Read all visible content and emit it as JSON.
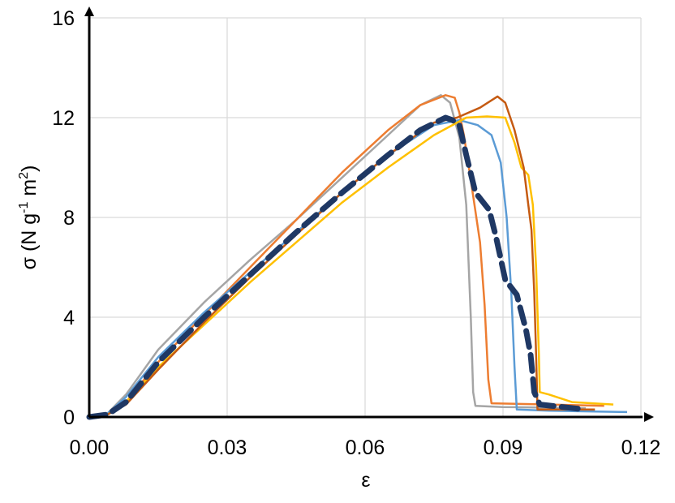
{
  "chart_data": {
    "type": "line",
    "title": "",
    "xlabel": "ε",
    "ylabel": {
      "prefix": "σ (N g",
      "sup1": "-1",
      "mid": " m",
      "sup2": "2",
      "suffix": ")"
    },
    "xlim": [
      0,
      0.12
    ],
    "ylim": [
      0,
      16
    ],
    "xticks": [
      0.0,
      0.03,
      0.06,
      0.09,
      0.12
    ],
    "xtick_labels": [
      "0.00",
      "0.03",
      "0.06",
      "0.09",
      "0.12"
    ],
    "yticks": [
      0,
      4,
      8,
      12,
      16
    ],
    "ytick_labels": [
      "0",
      "4",
      "8",
      "12",
      "16"
    ],
    "grid": true,
    "legend": "none",
    "series": [
      {
        "color": "#a5a5a5",
        "style": "solid",
        "points": [
          [
            0,
            0
          ],
          [
            0.004,
            0.15
          ],
          [
            0.008,
            0.9
          ],
          [
            0.015,
            2.7
          ],
          [
            0.025,
            4.6
          ],
          [
            0.035,
            6.3
          ],
          [
            0.045,
            7.9
          ],
          [
            0.055,
            9.6
          ],
          [
            0.065,
            11.3
          ],
          [
            0.072,
            12.5
          ],
          [
            0.0765,
            12.9
          ],
          [
            0.0785,
            12.6
          ],
          [
            0.0805,
            11.2
          ],
          [
            0.082,
            8.5
          ],
          [
            0.083,
            4.0
          ],
          [
            0.0835,
            1.0
          ],
          [
            0.084,
            0.45
          ],
          [
            0.09,
            0.4
          ],
          [
            0.108,
            0.35
          ]
        ]
      },
      {
        "color": "#ed7d31",
        "style": "solid",
        "points": [
          [
            0,
            0
          ],
          [
            0.004,
            0.1
          ],
          [
            0.008,
            0.6
          ],
          [
            0.015,
            2.2
          ],
          [
            0.025,
            4.1
          ],
          [
            0.035,
            6.0
          ],
          [
            0.045,
            7.9
          ],
          [
            0.055,
            9.8
          ],
          [
            0.065,
            11.5
          ],
          [
            0.072,
            12.5
          ],
          [
            0.0775,
            12.9
          ],
          [
            0.0795,
            12.8
          ],
          [
            0.0805,
            12.2
          ],
          [
            0.0815,
            11.3
          ],
          [
            0.083,
            9.5
          ],
          [
            0.085,
            7.0
          ],
          [
            0.086,
            4.5
          ],
          [
            0.0868,
            1.5
          ],
          [
            0.0875,
            0.55
          ],
          [
            0.1,
            0.5
          ],
          [
            0.112,
            0.45
          ]
        ]
      },
      {
        "color": "#5b9bd5",
        "style": "solid",
        "points": [
          [
            0,
            0
          ],
          [
            0.004,
            0.15
          ],
          [
            0.008,
            0.8
          ],
          [
            0.015,
            2.4
          ],
          [
            0.025,
            4.2
          ],
          [
            0.035,
            5.8
          ],
          [
            0.045,
            7.4
          ],
          [
            0.055,
            9.0
          ],
          [
            0.065,
            10.5
          ],
          [
            0.075,
            11.7
          ],
          [
            0.0805,
            11.9
          ],
          [
            0.0845,
            11.7
          ],
          [
            0.0875,
            11.3
          ],
          [
            0.0895,
            10.2
          ],
          [
            0.0908,
            8.0
          ],
          [
            0.0918,
            5.0
          ],
          [
            0.0925,
            2.0
          ],
          [
            0.093,
            0.3
          ],
          [
            0.1,
            0.25
          ],
          [
            0.117,
            0.2
          ]
        ]
      },
      {
        "color": "#ffc000",
        "style": "solid",
        "points": [
          [
            0,
            0
          ],
          [
            0.004,
            0.1
          ],
          [
            0.008,
            0.6
          ],
          [
            0.015,
            2.0
          ],
          [
            0.025,
            3.7
          ],
          [
            0.035,
            5.4
          ],
          [
            0.045,
            7.0
          ],
          [
            0.055,
            8.6
          ],
          [
            0.065,
            10.0
          ],
          [
            0.075,
            11.3
          ],
          [
            0.082,
            12.0
          ],
          [
            0.0865,
            12.05
          ],
          [
            0.0905,
            12.0
          ],
          [
            0.0925,
            11.0
          ],
          [
            0.094,
            10.0
          ],
          [
            0.0955,
            9.7
          ],
          [
            0.0965,
            8.5
          ],
          [
            0.0972,
            6.0
          ],
          [
            0.0978,
            2.5
          ],
          [
            0.098,
            1.0
          ],
          [
            0.1,
            0.9
          ],
          [
            0.105,
            0.6
          ],
          [
            0.114,
            0.5
          ]
        ]
      },
      {
        "color": "#c55a11",
        "style": "solid",
        "points": [
          [
            0,
            0
          ],
          [
            0.004,
            0.1
          ],
          [
            0.008,
            0.5
          ],
          [
            0.015,
            1.9
          ],
          [
            0.025,
            3.8
          ],
          [
            0.035,
            5.6
          ],
          [
            0.045,
            7.3
          ],
          [
            0.055,
            9.0
          ],
          [
            0.065,
            10.5
          ],
          [
            0.075,
            11.8
          ],
          [
            0.08,
            12.0
          ],
          [
            0.085,
            12.4
          ],
          [
            0.0888,
            12.85
          ],
          [
            0.0905,
            12.6
          ],
          [
            0.0925,
            11.5
          ],
          [
            0.0945,
            10.0
          ],
          [
            0.0955,
            8.5
          ],
          [
            0.0962,
            7.5
          ],
          [
            0.0968,
            5.0
          ],
          [
            0.0972,
            2.5
          ],
          [
            0.0975,
            0.3
          ],
          [
            0.1,
            0.3
          ],
          [
            0.11,
            0.3
          ]
        ]
      },
      {
        "color": "#1f3864",
        "style": "dashed",
        "points": [
          [
            0,
            0
          ],
          [
            0.004,
            0.1
          ],
          [
            0.008,
            0.6
          ],
          [
            0.015,
            2.2
          ],
          [
            0.025,
            4.0
          ],
          [
            0.035,
            5.7
          ],
          [
            0.045,
            7.4
          ],
          [
            0.055,
            9.0
          ],
          [
            0.065,
            10.5
          ],
          [
            0.072,
            11.5
          ],
          [
            0.0775,
            12.0
          ],
          [
            0.079,
            11.9
          ],
          [
            0.0805,
            11.7
          ],
          [
            0.082,
            10.5
          ],
          [
            0.084,
            9.0
          ],
          [
            0.087,
            8.3
          ],
          [
            0.0885,
            7.2
          ],
          [
            0.0905,
            5.5
          ],
          [
            0.093,
            4.9
          ],
          [
            0.095,
            3.5
          ],
          [
            0.096,
            2.5
          ],
          [
            0.0968,
            1.0
          ],
          [
            0.098,
            0.5
          ],
          [
            0.103,
            0.4
          ],
          [
            0.108,
            0.3
          ]
        ]
      }
    ]
  }
}
